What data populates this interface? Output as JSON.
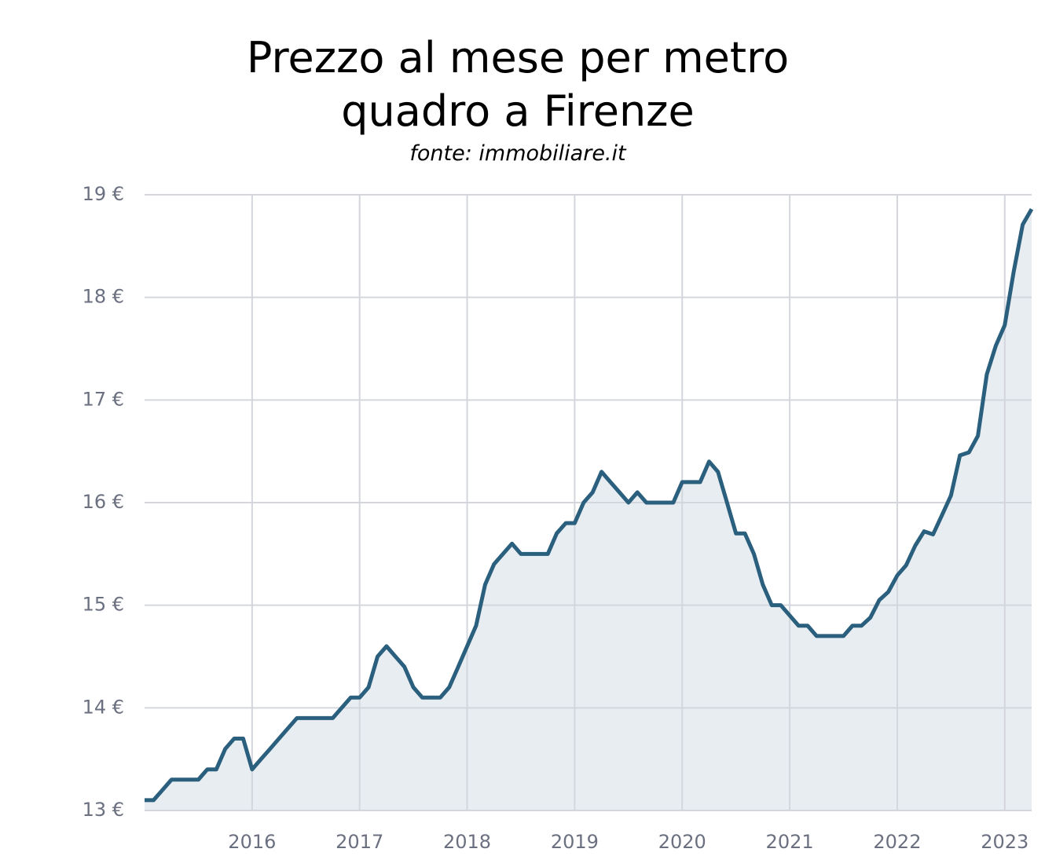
{
  "chart_data": {
    "type": "area-line",
    "title": "Prezzo al mese per metro quadro a Firenze",
    "subtitle": "fonte: immobiliare.it",
    "x": [
      2015,
      2015.083,
      2015.167,
      2015.25,
      2015.333,
      2015.417,
      2015.5,
      2015.583,
      2015.667,
      2015.75,
      2015.833,
      2015.917,
      2016,
      2016.083,
      2016.167,
      2016.25,
      2016.333,
      2016.417,
      2016.5,
      2016.583,
      2016.667,
      2016.75,
      2016.833,
      2016.917,
      2017,
      2017.083,
      2017.167,
      2017.25,
      2017.333,
      2017.417,
      2017.5,
      2017.583,
      2017.667,
      2017.75,
      2017.833,
      2017.917,
      2018,
      2018.083,
      2018.167,
      2018.25,
      2018.333,
      2018.417,
      2018.5,
      2018.583,
      2018.667,
      2018.75,
      2018.833,
      2018.917,
      2019,
      2019.083,
      2019.167,
      2019.25,
      2019.333,
      2019.417,
      2019.5,
      2019.583,
      2019.667,
      2019.75,
      2019.833,
      2019.917,
      2020,
      2020.083,
      2020.167,
      2020.25,
      2020.333,
      2020.417,
      2020.5,
      2020.583,
      2020.667,
      2020.75,
      2020.833,
      2020.917,
      2021,
      2021.083,
      2021.167,
      2021.25,
      2021.333,
      2021.417,
      2021.5,
      2021.583,
      2021.667,
      2021.75,
      2021.833,
      2021.917,
      2022,
      2022.083,
      2022.167,
      2022.25,
      2022.333,
      2022.417,
      2022.5,
      2022.583,
      2022.667,
      2022.75,
      2022.833,
      2022.917,
      2023,
      2023.083,
      2023.167,
      2023.25
    ],
    "values": [
      13.1,
      13.1,
      13.2,
      13.3,
      13.3,
      13.3,
      13.3,
      13.4,
      13.4,
      13.6,
      13.7,
      13.7,
      13.4,
      13.5,
      13.6,
      13.7,
      13.8,
      13.9,
      13.9,
      13.9,
      13.9,
      13.9,
      14.0,
      14.1,
      14.1,
      14.2,
      14.5,
      14.6,
      14.5,
      14.4,
      14.2,
      14.1,
      14.1,
      14.1,
      14.2,
      14.4,
      14.6,
      14.8,
      15.2,
      15.4,
      15.5,
      15.6,
      15.5,
      15.5,
      15.5,
      15.5,
      15.7,
      15.8,
      15.8,
      16.0,
      16.1,
      16.3,
      16.2,
      16.1,
      16.0,
      16.1,
      16.0,
      16.0,
      16.0,
      16.0,
      16.2,
      16.2,
      16.2,
      16.4,
      16.3,
      16.0,
      15.7,
      15.7,
      15.5,
      15.2,
      15.0,
      15.0,
      14.9,
      14.8,
      14.8,
      14.7,
      14.7,
      14.7,
      14.7,
      14.8,
      14.8,
      14.88,
      15.05,
      15.13,
      15.29,
      15.39,
      15.58,
      15.72,
      15.69,
      15.88,
      16.07,
      16.46,
      16.49,
      16.65,
      17.25,
      17.53,
      17.73,
      18.25,
      18.71,
      18.86
    ],
    "color": "#2b5f7e",
    "fill_color": "#e8edf1",
    "xlim": [
      2015,
      2023.25
    ],
    "xticks": [
      2016,
      2017,
      2018,
      2019,
      2020,
      2021,
      2022,
      2023
    ],
    "ylim": [
      13,
      19
    ],
    "yticks": [
      {
        "value": 13,
        "label": "13 €"
      },
      {
        "value": 14,
        "label": "14 €"
      },
      {
        "value": 15,
        "label": "15 €"
      },
      {
        "value": 16,
        "label": "16 €"
      },
      {
        "value": 17,
        "label": "17 €"
      },
      {
        "value": 18,
        "label": "18 €"
      },
      {
        "value": 19,
        "label": "19 €"
      }
    ],
    "grid": true
  }
}
